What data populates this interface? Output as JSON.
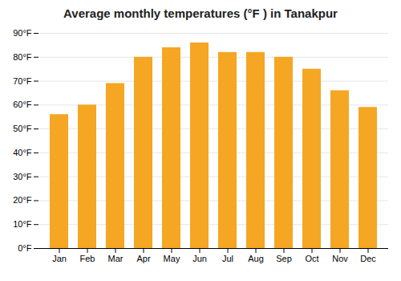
{
  "chart_data": {
    "type": "bar",
    "title": "Average monthly temperatures (°F ) in Tanakpur",
    "categories": [
      "Jan",
      "Feb",
      "Mar",
      "Apr",
      "May",
      "Jun",
      "Jul",
      "Aug",
      "Sep",
      "Oct",
      "Nov",
      "Dec"
    ],
    "values": [
      56,
      60,
      69,
      80,
      84,
      86,
      82,
      82,
      80,
      75,
      66,
      59
    ],
    "color": "#F5A623",
    "ylim": [
      0,
      90
    ],
    "yticks": [
      {
        "value": 0,
        "label": "0°F"
      },
      {
        "value": 10,
        "label": "10°F"
      },
      {
        "value": 20,
        "label": "20°F"
      },
      {
        "value": 30,
        "label": "30°F"
      },
      {
        "value": 40,
        "label": "40°F"
      },
      {
        "value": 50,
        "label": "50°F"
      },
      {
        "value": 60,
        "label": "60°F"
      },
      {
        "value": 70,
        "label": "70°F"
      },
      {
        "value": 80,
        "label": "80°F"
      },
      {
        "value": 90,
        "label": "90°F"
      }
    ],
    "grid": true
  }
}
